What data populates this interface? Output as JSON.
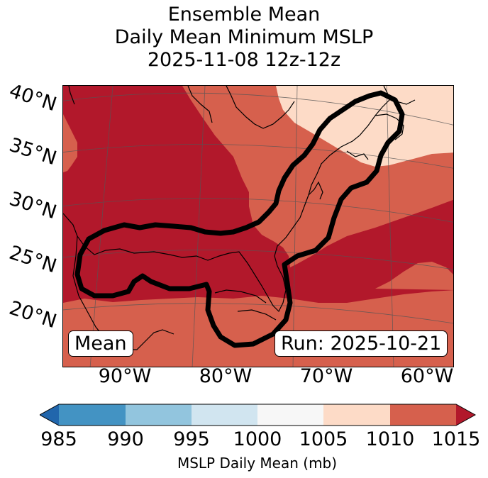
{
  "title": {
    "line1": "Ensemble Mean",
    "line2": "Daily Mean Minimum MSLP",
    "line3": "2025-11-08 12z-12z"
  },
  "map": {
    "lat_labels": [
      "40°N",
      "35°N",
      "30°N",
      "25°N",
      "20°N"
    ],
    "lon_labels": [
      "90°W",
      "80°W",
      "70°W",
      "60°W"
    ],
    "left_box": "Mean",
    "right_box": "Run: 2025-10-21"
  },
  "colorbar": {
    "label": "MSLP Daily Mean (mb)",
    "ticks": [
      "985",
      "990",
      "995",
      "1000",
      "1005",
      "1010",
      "1015"
    ],
    "colors": {
      "under": "#2166ac",
      "c985_990": "#4393c3",
      "c990_995": "#92c5de",
      "c995_1000": "#d1e5f0",
      "c1000_1005": "#f7f7f7",
      "c1005_1010": "#fddbc7",
      "c1010_1015": "#d6604d",
      "over": "#b2182b"
    }
  }
}
